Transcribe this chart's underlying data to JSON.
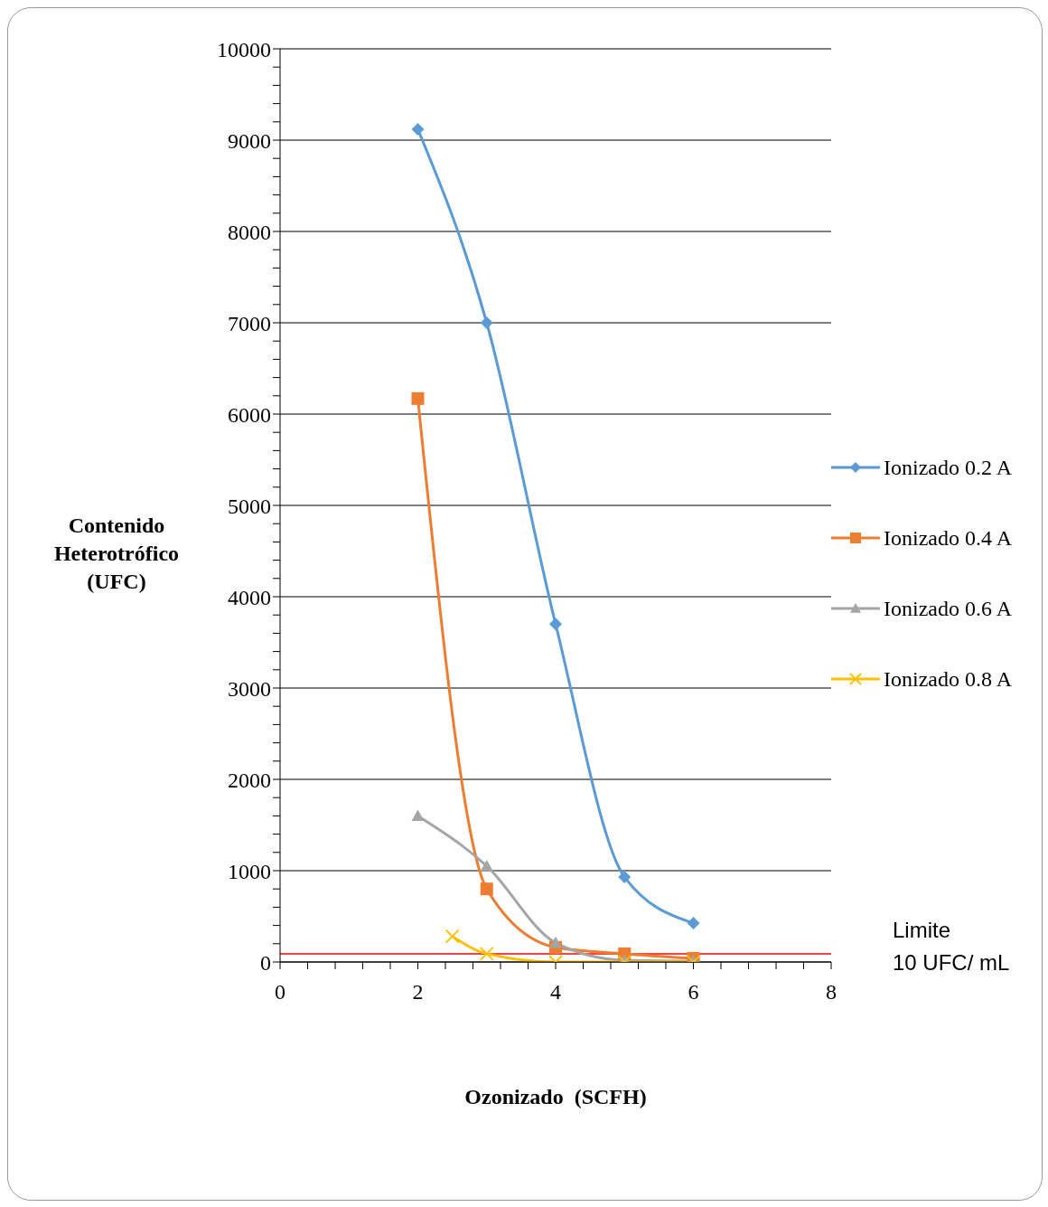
{
  "chart_data": {
    "type": "line",
    "xlabel": "Ozonizado  (SCFH)",
    "ylabel": "Contenido Heterotrófico (UFC)",
    "xlim": [
      0,
      8
    ],
    "ylim": [
      0,
      10000
    ],
    "xticks": [
      0,
      {
        "value": 0.4,
        "label": null
      },
      {
        "value": 0.8,
        "label": null
      },
      {
        "value": 1.2,
        "label": null
      },
      {
        "value": 1.6,
        "label": null
      },
      2,
      {
        "value": 2.4,
        "label": null
      },
      {
        "value": 2.8,
        "label": null
      },
      {
        "value": 3.2,
        "label": null
      },
      {
        "value": 3.6,
        "label": null
      },
      4,
      {
        "value": 4.4,
        "label": null
      },
      {
        "value": 4.8,
        "label": null
      },
      {
        "value": 5.2,
        "label": null
      },
      {
        "value": 5.6,
        "label": null
      },
      6,
      {
        "value": 6.4,
        "label": null
      },
      {
        "value": 6.8,
        "label": null
      },
      {
        "value": 7.2,
        "label": null
      },
      {
        "value": 7.6,
        "label": null
      },
      8
    ],
    "yticks": [
      0,
      {
        "value": 200,
        "label": null
      },
      {
        "value": 400,
        "label": null
      },
      {
        "value": 600,
        "label": null
      },
      {
        "value": 800,
        "label": null
      },
      1000,
      {
        "value": 1200,
        "label": null
      },
      {
        "value": 1400,
        "label": null
      },
      {
        "value": 1600,
        "label": null
      },
      {
        "value": 1800,
        "label": null
      },
      2000,
      {
        "value": 2200,
        "label": null
      },
      {
        "value": 2400,
        "label": null
      },
      {
        "value": 2600,
        "label": null
      },
      {
        "value": 2800,
        "label": null
      },
      3000,
      {
        "value": 3200,
        "label": null
      },
      {
        "value": 3400,
        "label": null
      },
      {
        "value": 3600,
        "label": null
      },
      {
        "value": 3800,
        "label": null
      },
      4000,
      {
        "value": 4200,
        "label": null
      },
      {
        "value": 4400,
        "label": null
      },
      {
        "value": 4600,
        "label": null
      },
      {
        "value": 4800,
        "label": null
      },
      5000,
      {
        "value": 5200,
        "label": null
      },
      {
        "value": 5400,
        "label": null
      },
      {
        "value": 5600,
        "label": null
      },
      {
        "value": 5800,
        "label": null
      },
      6000,
      {
        "value": 6200,
        "label": null
      },
      {
        "value": 6400,
        "label": null
      },
      {
        "value": 6600,
        "label": null
      },
      {
        "value": 6800,
        "label": null
      },
      7000,
      {
        "value": 7200,
        "label": null
      },
      {
        "value": 7400,
        "label": null
      },
      {
        "value": 7600,
        "label": null
      },
      {
        "value": 7800,
        "label": null
      },
      8000,
      {
        "value": 8200,
        "label": null
      },
      {
        "value": 8400,
        "label": null
      },
      {
        "value": 8600,
        "label": null
      },
      {
        "value": 8800,
        "label": null
      },
      9000,
      {
        "value": 9200,
        "label": null
      },
      {
        "value": 9400,
        "label": null
      },
      {
        "value": 9600,
        "label": null
      },
      {
        "value": 9800,
        "label": null
      },
      10000
    ],
    "grid": "y",
    "legend": "right",
    "line_style": "solid",
    "ref_lines": [
      {
        "axis": "y",
        "value": 90,
        "label": "Limite 10 UFC/ mL",
        "color": "#ff0000"
      }
    ],
    "series": [
      {
        "name": "Ionizado 0.2 A",
        "color": "#5b9bd5",
        "marker": "diamond",
        "x": [
          2,
          3,
          4,
          5,
          6
        ],
        "values": [
          9120,
          7000,
          3700,
          930,
          425
        ]
      },
      {
        "name": "Ionizado 0.4 A",
        "color": "#ed7d31",
        "marker": "square",
        "x": [
          2,
          3,
          4,
          5,
          6
        ],
        "values": [
          6170,
          800,
          160,
          90,
          40
        ]
      },
      {
        "name": "Ionizado 0.6 A",
        "color": "#a5a5a5",
        "marker": "triangle",
        "x": [
          2,
          3,
          4,
          5,
          6
        ],
        "values": [
          1600,
          1050,
          210,
          20,
          10
        ]
      },
      {
        "name": "Ionizado 0.8 A",
        "color": "#ffc000",
        "marker": "cross",
        "x": [
          2.5,
          3,
          4,
          5,
          6
        ],
        "values": [
          280,
          90,
          0,
          0,
          0
        ]
      }
    ]
  }
}
